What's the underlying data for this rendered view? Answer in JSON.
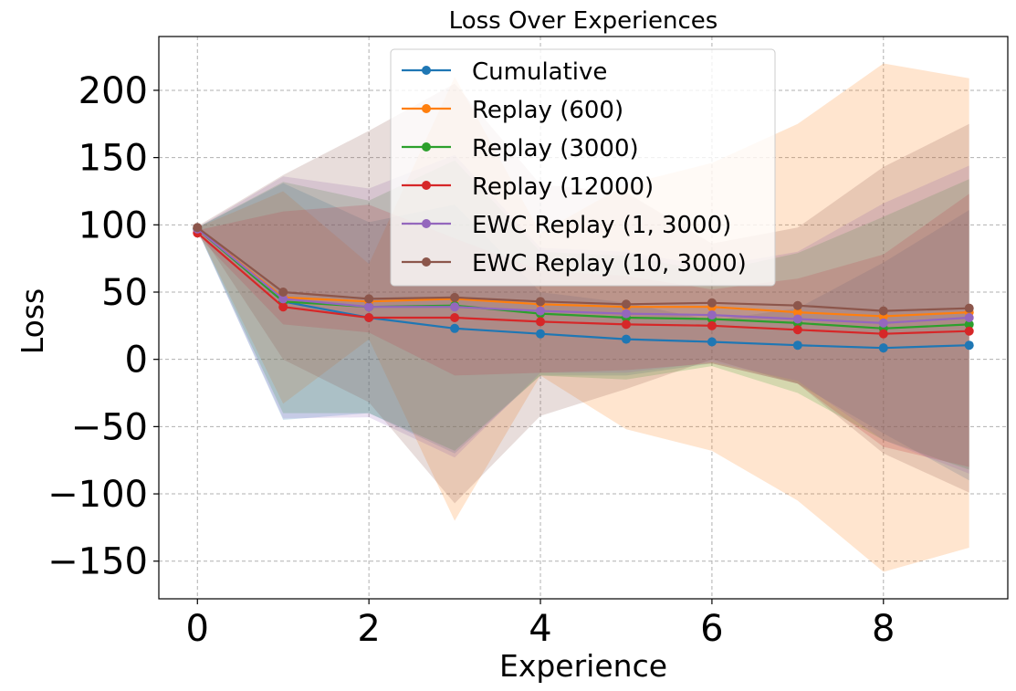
{
  "chart_data": {
    "type": "line",
    "title": "Loss Over Experiences",
    "xlabel": "Experience",
    "ylabel": "Loss",
    "xlim": [
      -0.45,
      9.45
    ],
    "ylim": [
      -178,
      240
    ],
    "xticks": [
      0,
      2,
      4,
      6,
      8
    ],
    "yticks": [
      -150,
      -100,
      -50,
      0,
      50,
      100,
      150,
      200
    ],
    "xtick_labels": [
      "0",
      "2",
      "4",
      "6",
      "8"
    ],
    "ytick_labels": [
      "−150",
      "−100",
      "−50",
      "0",
      "50",
      "100",
      "150",
      "200"
    ],
    "grid": true,
    "legend_position": "top-center",
    "x": [
      0,
      1,
      2,
      3,
      4,
      5,
      6,
      7,
      8,
      9
    ],
    "series": [
      {
        "name": "Cumulative",
        "color": "#1f77b4",
        "values": [
          97,
          43,
          31,
          23,
          19,
          15,
          13,
          10.5,
          8.5,
          10.5
        ],
        "lower": [
          96,
          -45,
          -40,
          -70,
          -12,
          -12,
          -3,
          -18,
          -55,
          -90
        ],
        "upper": [
          98,
          131,
          102,
          115,
          50,
          42,
          29,
          38,
          72,
          111
        ]
      },
      {
        "name": "Replay (600)",
        "color": "#ff7f0e",
        "values": [
          97,
          46,
          43,
          45,
          41,
          39,
          39,
          35,
          32,
          35
        ],
        "lower": [
          96,
          -33,
          15,
          -120,
          -12,
          -52,
          -68,
          -105,
          -158,
          -140
        ],
        "upper": [
          98,
          125,
          71,
          210,
          94,
          130,
          146,
          175,
          220,
          209
        ]
      },
      {
        "name": "Replay (3000)",
        "color": "#2ca02c",
        "values": [
          97,
          43,
          39,
          40,
          34,
          31,
          30,
          27,
          23,
          26
        ],
        "lower": [
          96,
          -40,
          -40,
          -68,
          -12,
          -15,
          -5,
          -25,
          -60,
          -82
        ],
        "upper": [
          98,
          132,
          118,
          148,
          80,
          77,
          65,
          79,
          106,
          134
        ]
      },
      {
        "name": "Replay (12000)",
        "color": "#d62728",
        "values": [
          94,
          39,
          31,
          31,
          28,
          26,
          25,
          22,
          19,
          21
        ],
        "lower": [
          92,
          26,
          20,
          -12,
          -10,
          -8,
          -3,
          -18,
          -65,
          -80
        ],
        "upper": [
          96,
          110,
          115,
          90,
          66,
          62,
          52,
          60,
          78,
          123
        ]
      },
      {
        "name": "EWC Replay (1, 3000)",
        "color": "#9467bd",
        "values": [
          97,
          45,
          39,
          39,
          36,
          34,
          33,
          30,
          27,
          31
        ],
        "lower": [
          96,
          -44,
          -43,
          -73,
          -10,
          -10,
          -2,
          -16,
          -60,
          -85
        ],
        "upper": [
          98,
          136,
          127,
          152,
          83,
          80,
          69,
          80,
          116,
          144
        ]
      },
      {
        "name": "EWC Replay (10, 3000)",
        "color": "#8c564b",
        "values": [
          98,
          50,
          45,
          46,
          43,
          41,
          42,
          40,
          36,
          38
        ],
        "lower": [
          97,
          0,
          -32,
          -107,
          -42,
          -22,
          0,
          -18,
          -70,
          -99
        ],
        "upper": [
          99,
          137,
          170,
          205,
          130,
          124,
          86,
          98,
          143,
          175
        ]
      }
    ]
  }
}
